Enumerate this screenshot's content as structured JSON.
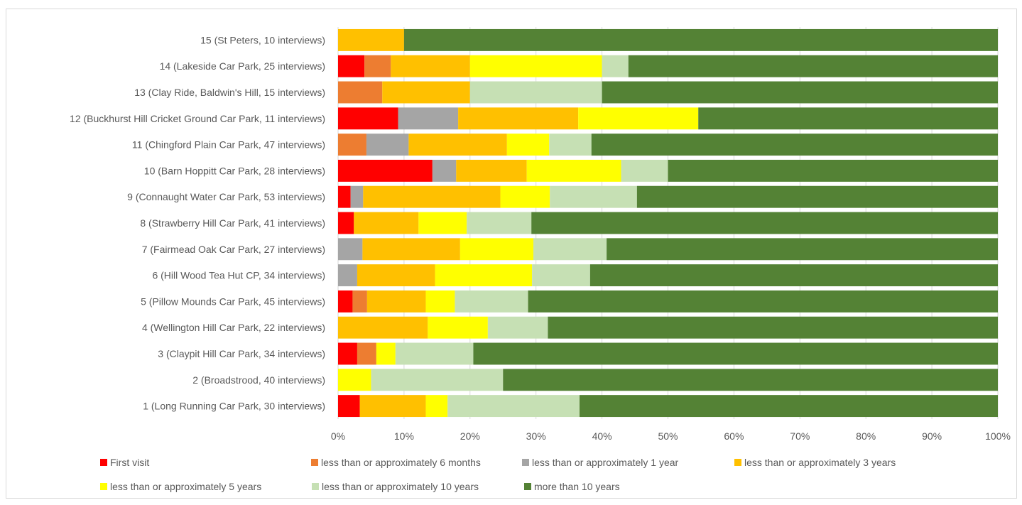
{
  "chart_data": {
    "type": "bar",
    "orientation": "horizontal",
    "stacked": "percent",
    "categories": [
      "15 (St Peters, 10 interviews)",
      "14 (Lakeside Car Park, 25 interviews)",
      "13 (Clay Ride, Baldwin's Hill, 15 interviews)",
      "12 (Buckhurst Hill Cricket Ground Car Park, 11 interviews)",
      "11 (Chingford Plain Car Park, 47 interviews)",
      "10 (Barn Hoppitt Car Park, 28 interviews)",
      "9 (Connaught Water Car Park, 53 interviews)",
      "8 (Strawberry Hill Car Park, 41 interviews)",
      "7 (Fairmead Oak Car Park, 27 interviews)",
      "6 (Hill Wood Tea Hut CP, 34 interviews)",
      "5 (Pillow Mounds Car Park, 45 interviews)",
      "4 (Wellington Hill Car Park, 22 interviews)",
      "3 (Claypit Hill Car Park, 34 interviews)",
      "2 (Broadstrood, 40 interviews)",
      "1 (Long Running Car Park, 30 interviews)"
    ],
    "series": [
      {
        "name": "First visit",
        "color": "#ff0000",
        "values": [
          0,
          4,
          0,
          9.1,
          0,
          14.3,
          1.9,
          2.4,
          0,
          0,
          2.2,
          0,
          2.9,
          0,
          3.3
        ]
      },
      {
        "name": "less than or approximately 6 months",
        "color": "#ed7d31",
        "values": [
          0,
          4,
          6.7,
          0,
          4.3,
          0,
          0,
          0,
          0,
          0,
          2.2,
          0,
          2.9,
          0,
          0
        ]
      },
      {
        "name": "less than or approximately 1 year",
        "color": "#a5a5a5",
        "values": [
          0,
          0,
          0,
          9.1,
          6.4,
          3.6,
          1.9,
          0,
          3.7,
          2.9,
          0,
          0,
          0,
          0,
          0
        ]
      },
      {
        "name": "less than or approximately 3 years",
        "color": "#ffc000",
        "values": [
          10,
          12,
          13.3,
          18.2,
          14.9,
          10.7,
          20.8,
          9.8,
          14.8,
          11.8,
          8.9,
          13.6,
          0,
          0,
          10
        ]
      },
      {
        "name": "less than or approximately 5 years",
        "color": "#ffff00",
        "values": [
          0,
          20,
          0,
          18.2,
          6.4,
          14.3,
          7.5,
          7.3,
          11.1,
          14.7,
          4.4,
          9.1,
          2.9,
          5,
          3.3
        ]
      },
      {
        "name": "less than or approximately 10 years",
        "color": "#c6e0b4",
        "values": [
          0,
          4,
          20,
          0,
          6.4,
          7.1,
          13.2,
          9.8,
          11.1,
          8.8,
          11.1,
          9.1,
          11.8,
          20,
          20
        ]
      },
      {
        "name": "more than 10 years",
        "color": "#548235",
        "values": [
          90,
          56,
          60,
          45.4,
          61.6,
          50,
          54.7,
          70.7,
          59.3,
          61.8,
          71.2,
          68.2,
          79.5,
          75,
          63.4
        ]
      }
    ],
    "xlim": [
      0,
      100
    ],
    "x_ticks": [
      "0%",
      "10%",
      "20%",
      "30%",
      "40%",
      "50%",
      "60%",
      "70%",
      "80%",
      "90%",
      "100%"
    ],
    "grid": true,
    "legend_position": "bottom"
  }
}
